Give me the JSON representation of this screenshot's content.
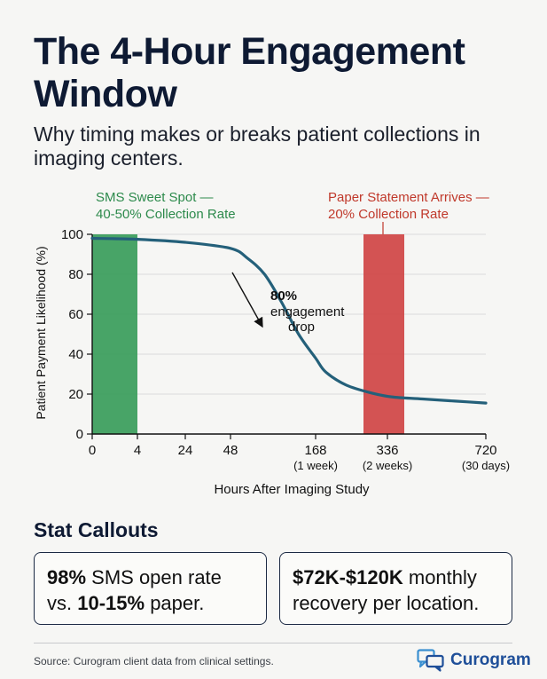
{
  "header": {
    "title": "The 4-Hour Engagement Window",
    "subtitle": "Why timing makes or breaks patient collections in imaging centers."
  },
  "annotations": {
    "sms_line1": "SMS Sweet Spot —",
    "sms_line2": "40-50% Collection Rate",
    "paper_line1": "Paper Statement Arrives —",
    "paper_line2": "20% Collection Rate",
    "drop_line1": "80%",
    "drop_line2": "engagement",
    "drop_line3": "drop"
  },
  "colors": {
    "sms_band": "#3e9f5f",
    "paper_band": "#d14a4a",
    "curve": "#24607a",
    "sms_text": "#2d8a4c",
    "paper_text": "#c0392b"
  },
  "stats": {
    "heading": "Stat Callouts",
    "box1": {
      "bold1": "98%",
      "text1": " SMS open rate",
      "text2": "vs. ",
      "bold2": "10-15%",
      "text3": " paper."
    },
    "box2": {
      "bold1": "$72K-$120K",
      "text1": " monthly",
      "text2": "recovery per location."
    }
  },
  "footer": {
    "source": "Source: Curogram client data from clinical settings.",
    "logo_text": "Curogram"
  },
  "chart_data": {
    "type": "line",
    "xlabel": "Hours After Imaging Study",
    "ylabel": "Patient Payment Likelihood (%)",
    "ylim": [
      0,
      100
    ],
    "yticks": [
      0,
      20,
      40,
      60,
      80,
      100
    ],
    "xticks": [
      {
        "value": 0,
        "label": "0",
        "sub": ""
      },
      {
        "value": 4,
        "label": "4",
        "sub": ""
      },
      {
        "value": 24,
        "label": "24",
        "sub": ""
      },
      {
        "value": 48,
        "label": "48",
        "sub": ""
      },
      {
        "value": 168,
        "label": "168",
        "sub": "(1 week)"
      },
      {
        "value": 336,
        "label": "336",
        "sub": "(2 weeks)"
      },
      {
        "value": 720,
        "label": "720",
        "sub": "(30 days)"
      }
    ],
    "grid": true,
    "bands": [
      {
        "name": "SMS Sweet Spot",
        "x_start": 0,
        "x_end": 4
      },
      {
        "name": "Paper Statement Arrives",
        "x_start": 270,
        "x_end": 360
      }
    ],
    "series": [
      {
        "points": [
          [
            0,
            98
          ],
          [
            4,
            97.5
          ],
          [
            24,
            96
          ],
          [
            48,
            93
          ],
          [
            72,
            88
          ],
          [
            96,
            80
          ],
          [
            120,
            66
          ],
          [
            144,
            50
          ],
          [
            168,
            38
          ],
          [
            192,
            31
          ],
          [
            240,
            24.5
          ],
          [
            300,
            20.5
          ],
          [
            360,
            18.5
          ],
          [
            480,
            17.5
          ],
          [
            600,
            16.5
          ],
          [
            720,
            15.5
          ]
        ]
      }
    ]
  }
}
